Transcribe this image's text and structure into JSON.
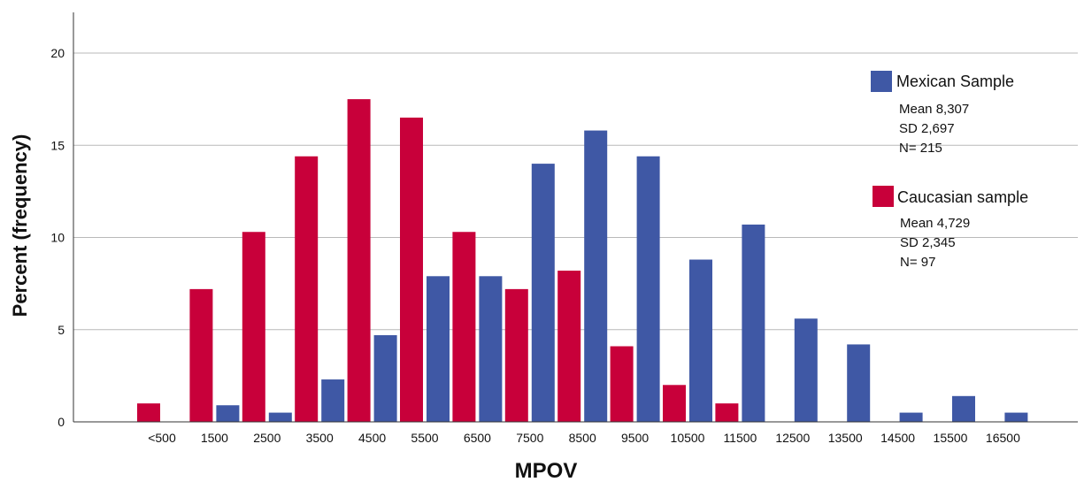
{
  "chart_data": {
    "type": "bar",
    "xlabel": "MPOV",
    "ylabel": "Percent (frequency)",
    "ylim": [
      0,
      22
    ],
    "yticks": [
      0,
      5,
      10,
      15,
      20
    ],
    "grid": true,
    "legend_position": "right",
    "categories": [
      "<500",
      "1500",
      "2500",
      "3500",
      "4500",
      "5500",
      "6500",
      "7500",
      "8500",
      "9500",
      "10500",
      "11500",
      "12500",
      "13500",
      "14500",
      "15500",
      "16500"
    ],
    "series": [
      {
        "name": "Caucasian sample",
        "color": "#c8003a",
        "values": [
          1.0,
          7.2,
          10.3,
          14.4,
          17.5,
          16.5,
          10.3,
          7.2,
          8.2,
          4.1,
          2.0,
          1.0,
          null,
          null,
          null,
          null,
          null
        ],
        "stats": [
          "Mean 4,729",
          "SD 2,345",
          "N= 97"
        ]
      },
      {
        "name": "Mexican Sample",
        "color": "#3f58a5",
        "values": [
          null,
          0.9,
          0.5,
          2.3,
          4.7,
          7.9,
          7.9,
          14.0,
          15.8,
          14.4,
          8.8,
          10.7,
          5.6,
          4.2,
          0.5,
          1.4,
          0.5
        ],
        "stats": [
          "Mean 8,307",
          "SD 2,697",
          "N= 215"
        ]
      }
    ]
  }
}
